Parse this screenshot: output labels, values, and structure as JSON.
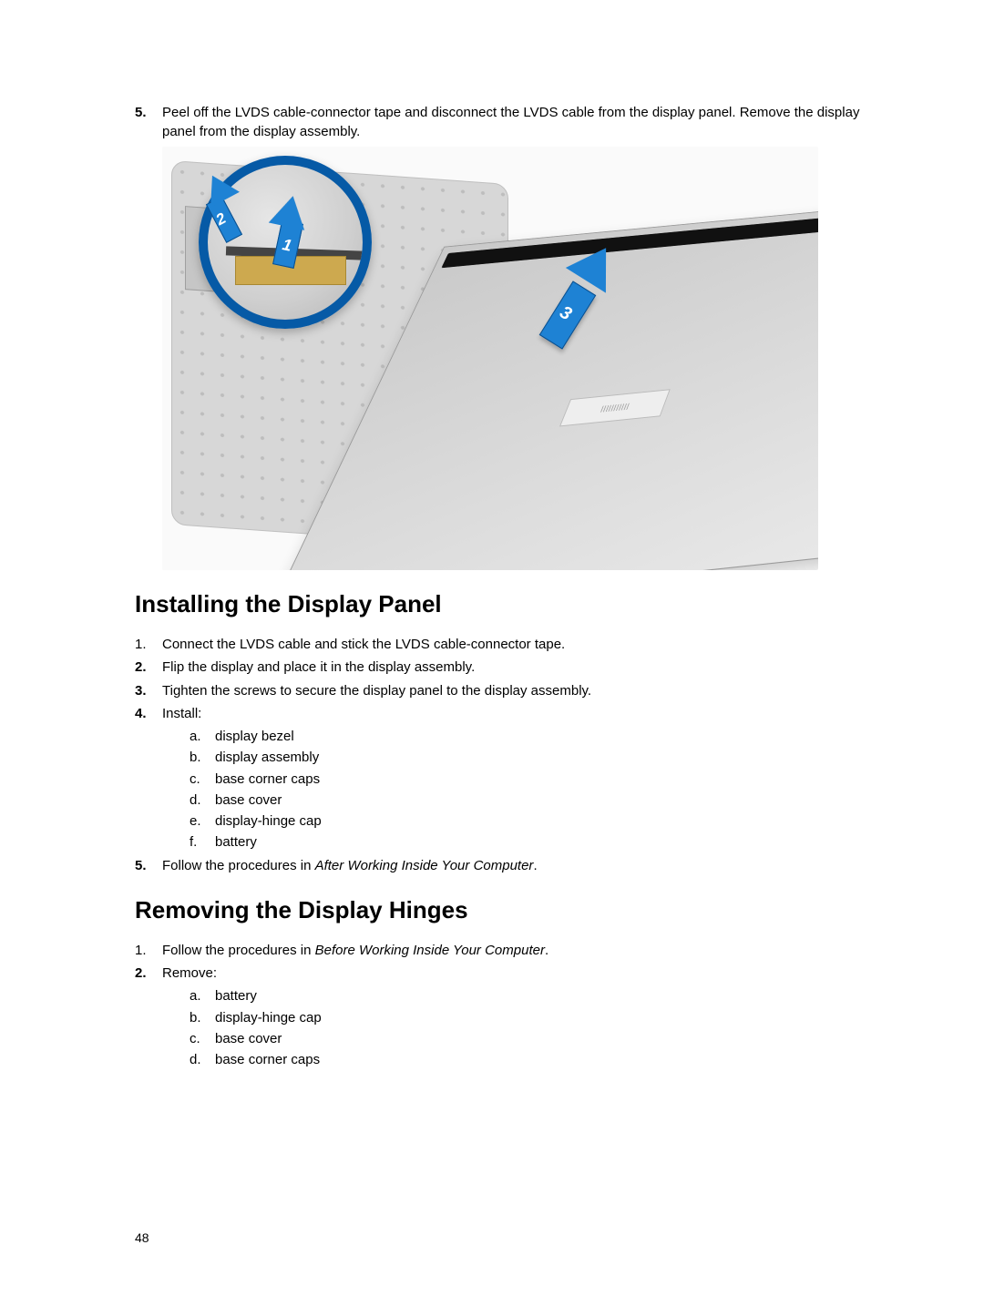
{
  "top_step": {
    "number": "5.",
    "text": "Peel off the LVDS cable-connector tape and disconnect the LVDS cable from the display panel. Remove the display panel from the display assembly."
  },
  "figure": {
    "arrow1": "1",
    "arrow2": "2",
    "arrow3": "3",
    "callout_border_color": "#065aa6",
    "arrow_color": "#1e82d4",
    "panel_label": "|||||||||||"
  },
  "section1": {
    "title": "Installing the Display Panel",
    "steps": [
      {
        "n": "1.",
        "bold": false,
        "text": "Connect the LVDS cable and stick the LVDS cable-connector tape."
      },
      {
        "n": "2.",
        "bold": true,
        "text": "Flip the display and place it in the display assembly."
      },
      {
        "n": "3.",
        "bold": true,
        "text": "Tighten the screws to secure the display panel to the display assembly."
      },
      {
        "n": "4.",
        "bold": true,
        "text": "Install:",
        "sub": [
          {
            "l": "a.",
            "t": "display bezel"
          },
          {
            "l": "b.",
            "t": "display assembly"
          },
          {
            "l": "c.",
            "t": "base corner caps"
          },
          {
            "l": "d.",
            "t": "base cover"
          },
          {
            "l": "e.",
            "t": "display-hinge cap"
          },
          {
            "l": "f.",
            "t": "battery"
          }
        ]
      },
      {
        "n": "5.",
        "bold": true,
        "text_pre": "Follow the procedures in ",
        "text_italic": "After Working Inside Your Computer",
        "text_post": "."
      }
    ]
  },
  "section2": {
    "title": "Removing the Display Hinges",
    "steps": [
      {
        "n": "1.",
        "bold": false,
        "text_pre": "Follow the procedures in ",
        "text_italic": "Before Working Inside Your Computer",
        "text_post": "."
      },
      {
        "n": "2.",
        "bold": true,
        "text": "Remove:",
        "sub": [
          {
            "l": "a.",
            "t": "battery"
          },
          {
            "l": "b.",
            "t": "display-hinge cap"
          },
          {
            "l": "c.",
            "t": "base cover"
          },
          {
            "l": "d.",
            "t": "base corner caps"
          }
        ]
      }
    ]
  },
  "page_number": "48"
}
